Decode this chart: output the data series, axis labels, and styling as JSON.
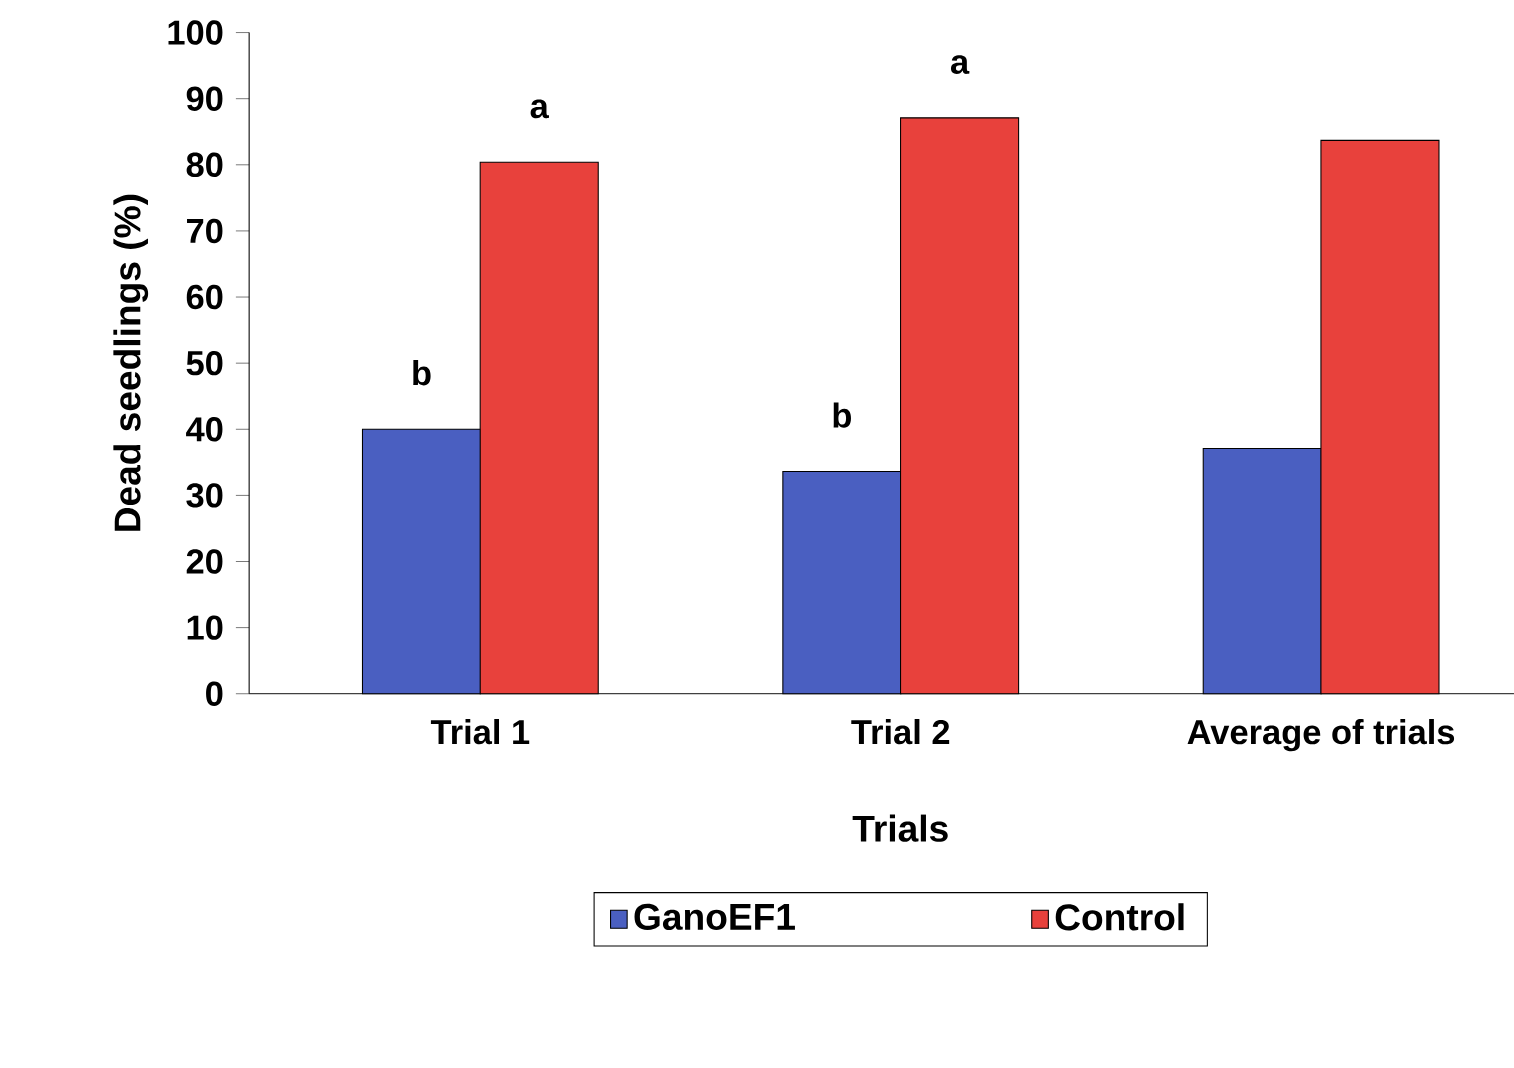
{
  "chart_data": {
    "type": "bar",
    "xlabel": "Trials",
    "ylabel": "Dead  seedlings (%)",
    "categories": [
      "Trial 1",
      "Trial 2",
      "Average of trials"
    ],
    "series": [
      {
        "name": "GanoEF1",
        "color": "#4a5fc1",
        "values": [
          40,
          33.6,
          37.1
        ],
        "value_labels": [
          "b",
          "b",
          null
        ]
      },
      {
        "name": "Control",
        "color": "#e8413c",
        "values": [
          80.4,
          87.1,
          83.7
        ],
        "value_labels": [
          "a",
          "a",
          null
        ]
      }
    ],
    "ylim": [
      0,
      100
    ],
    "yticks": [
      0,
      10,
      20,
      30,
      40,
      50,
      60,
      70,
      80,
      90,
      100
    ],
    "legend": "bottom"
  }
}
